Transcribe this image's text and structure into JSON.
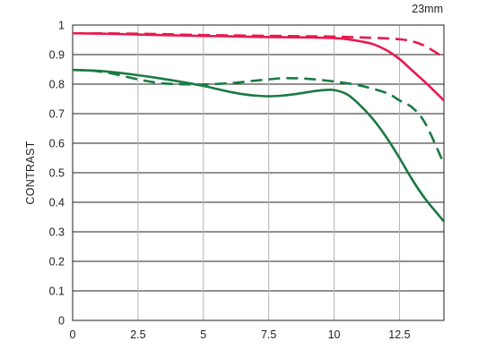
{
  "chart_data": {
    "type": "line",
    "title": "23mm",
    "xlabel": "",
    "ylabel": "CONTRAST",
    "xlim": [
      0,
      14.2
    ],
    "ylim": [
      0,
      1
    ],
    "x_ticks": [
      0,
      2.5,
      5,
      7.5,
      10,
      12.5
    ],
    "x_tick_labels": [
      "0",
      "2.5",
      "5",
      "7.5",
      "10",
      "12.5"
    ],
    "y_ticks": [
      0,
      0.1,
      0.2,
      0.3,
      0.4,
      0.5,
      0.6,
      0.7,
      0.8,
      0.9,
      1
    ],
    "y_tick_labels": [
      "0",
      "0.1",
      "0.2",
      "0.3",
      "0.4",
      "0.5",
      "0.6",
      "0.7",
      "0.8",
      "0.9",
      "1"
    ],
    "grid": true,
    "legend": "none",
    "series": [
      {
        "color": "#e8194f",
        "style": "solid",
        "x": [
          0,
          1,
          2,
          3,
          4,
          5,
          6,
          7,
          8,
          9,
          10,
          10.5,
          11,
          11.5,
          12,
          12.5,
          13,
          13.5,
          14.2
        ],
        "y": [
          0.972,
          0.971,
          0.969,
          0.967,
          0.965,
          0.963,
          0.962,
          0.96,
          0.959,
          0.958,
          0.956,
          0.952,
          0.945,
          0.935,
          0.915,
          0.885,
          0.845,
          0.805,
          0.745
        ]
      },
      {
        "color": "#e8194f",
        "style": "dashed",
        "x": [
          0,
          1,
          2,
          3,
          4,
          5,
          6,
          7,
          8,
          9,
          10,
          11,
          12,
          12.5,
          13,
          13.5,
          14.2
        ],
        "y": [
          0.972,
          0.972,
          0.971,
          0.97,
          0.968,
          0.966,
          0.965,
          0.964,
          0.963,
          0.962,
          0.961,
          0.958,
          0.955,
          0.952,
          0.945,
          0.928,
          0.89
        ]
      },
      {
        "color": "#1a7a43",
        "style": "solid",
        "x": [
          0,
          1,
          2,
          3,
          4,
          5,
          5.5,
          6,
          6.5,
          7,
          7.5,
          8,
          8.5,
          9,
          9.5,
          10,
          10.5,
          11,
          11.5,
          12,
          12.5,
          13,
          13.5,
          14.2
        ],
        "y": [
          0.848,
          0.845,
          0.836,
          0.824,
          0.81,
          0.794,
          0.784,
          0.774,
          0.766,
          0.761,
          0.759,
          0.761,
          0.766,
          0.773,
          0.779,
          0.78,
          0.765,
          0.728,
          0.68,
          0.62,
          0.55,
          0.475,
          0.41,
          0.335
        ]
      },
      {
        "color": "#1a7a43",
        "style": "dashed",
        "x": [
          0,
          0.5,
          1,
          1.5,
          2,
          2.5,
          3,
          3.5,
          4,
          4.5,
          5,
          6,
          7,
          7.5,
          8,
          8.5,
          9,
          10,
          11,
          12,
          12.5,
          13,
          13.5,
          14.2
        ],
        "y": [
          0.848,
          0.847,
          0.843,
          0.836,
          0.826,
          0.816,
          0.808,
          0.802,
          0.8,
          0.799,
          0.799,
          0.803,
          0.812,
          0.816,
          0.82,
          0.82,
          0.818,
          0.809,
          0.795,
          0.77,
          0.745,
          0.72,
          0.665,
          0.53
        ]
      }
    ]
  }
}
